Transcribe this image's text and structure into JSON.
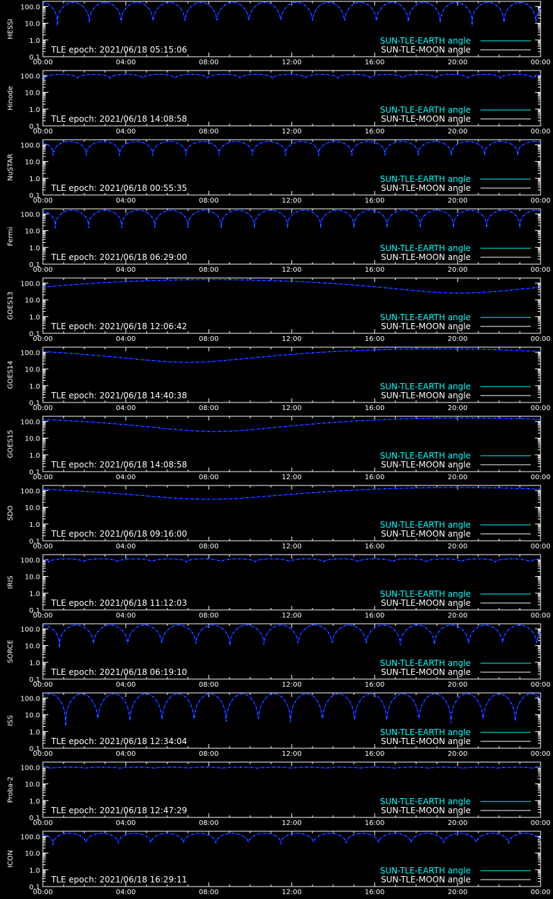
{
  "colors": {
    "background": "#000000",
    "axes": "#ffffff",
    "earth_angle": "#00ffff",
    "moon_angle": "#ffffff",
    "curve_dark": "#1010ff"
  },
  "legend": {
    "earth_label": "SUN-TLE-EARTH angle",
    "moon_label": "SUN-TLE-MOON angle"
  },
  "chart_data": [
    {
      "type": "line",
      "panel_label": "HESSI",
      "tle_epoch": "TLE epoch: 2021/06/18 05:15:06",
      "xlabel": "",
      "ylabel": "",
      "x_ticks": [
        "00:00",
        "04:00",
        "08:00",
        "12:00",
        "16:00",
        "20:00",
        "00:00"
      ],
      "xlim": [
        0,
        24
      ],
      "y_ticks": [
        "100.0",
        "10.0",
        "1.0",
        "0.1"
      ],
      "ylim": [
        0.1,
        200
      ],
      "y_scale": "log",
      "earth_angle": {
        "shape": "orbital",
        "periods": 15.6,
        "phase_hours": 0.7,
        "min": 7,
        "max": 175
      },
      "legend_placement": "bottom-right"
    },
    {
      "type": "line",
      "panel_label": "Hinode",
      "tle_epoch": "TLE epoch: 2021/06/18 14:08:58",
      "xlabel": "",
      "ylabel": "",
      "x_ticks": [
        "00:00",
        "04:00",
        "08:00",
        "12:00",
        "16:00",
        "20:00",
        "00:00"
      ],
      "xlim": [
        0,
        24
      ],
      "y_ticks": [
        "100.0",
        "10.0",
        "1.0",
        "0.1"
      ],
      "ylim": [
        0.1,
        200
      ],
      "y_scale": "log",
      "earth_angle": {
        "shape": "orbital",
        "periods": 15.3,
        "phase_hours": 0.1,
        "min": 62,
        "max": 120
      },
      "legend_placement": "bottom-right"
    },
    {
      "type": "line",
      "panel_label": "NuSTAR",
      "tle_epoch": "TLE epoch: 2021/06/18 00:55:35",
      "xlabel": "",
      "ylabel": "",
      "x_ticks": [
        "00:00",
        "04:00",
        "08:00",
        "12:00",
        "16:00",
        "20:00",
        "00:00"
      ],
      "xlim": [
        0,
        24
      ],
      "y_ticks": [
        "100.0",
        "10.0",
        "1.0",
        "0.1"
      ],
      "ylim": [
        0.1,
        200
      ],
      "y_scale": "log",
      "earth_angle": {
        "shape": "orbital",
        "periods": 15.0,
        "phase_hours": 0.5,
        "min": 22,
        "max": 155
      },
      "legend_placement": "bottom-right"
    },
    {
      "type": "line",
      "panel_label": "Fermi",
      "tle_epoch": "TLE epoch: 2021/06/18 06:29:00",
      "xlabel": "",
      "ylabel": "",
      "x_ticks": [
        "00:00",
        "04:00",
        "08:00",
        "12:00",
        "16:00",
        "20:00",
        "00:00"
      ],
      "xlim": [
        0,
        24
      ],
      "y_ticks": [
        "100.0",
        "10.0",
        "1.0",
        "0.1"
      ],
      "ylim": [
        0.1,
        200
      ],
      "y_scale": "log",
      "earth_angle": {
        "shape": "orbital",
        "periods": 15.0,
        "phase_hours": 0.6,
        "min": 14,
        "max": 165
      },
      "legend_placement": "bottom-right"
    },
    {
      "type": "line",
      "panel_label": "GOES13",
      "tle_epoch": "TLE epoch: 2021/06/18 12:06:42",
      "xlabel": "",
      "ylabel": "",
      "x_ticks": [
        "00:00",
        "04:00",
        "08:00",
        "12:00",
        "16:00",
        "20:00",
        "00:00"
      ],
      "xlim": [
        0,
        24
      ],
      "y_ticks": [
        "100.0",
        "10.0",
        "1.0",
        "0.1"
      ],
      "ylim": [
        0.1,
        200
      ],
      "y_scale": "log",
      "earth_angle": {
        "shape": "geo",
        "min_hour": 20.1,
        "min": 25,
        "max": 158
      },
      "legend_placement": "bottom-right"
    },
    {
      "type": "line",
      "panel_label": "GOES14",
      "tle_epoch": "TLE epoch: 2021/06/18 14:40:38",
      "xlabel": "",
      "ylabel": "",
      "x_ticks": [
        "00:00",
        "04:00",
        "08:00",
        "12:00",
        "16:00",
        "20:00",
        "00:00"
      ],
      "xlim": [
        0,
        24
      ],
      "y_ticks": [
        "100.0",
        "10.0",
        "1.0",
        "0.1"
      ],
      "ylim": [
        0.1,
        200
      ],
      "y_scale": "log",
      "earth_angle": {
        "shape": "geo",
        "min_hour": 7.0,
        "min": 25,
        "max": 158
      },
      "legend_placement": "bottom-right"
    },
    {
      "type": "line",
      "panel_label": "GOES15",
      "tle_epoch": "TLE epoch: 2021/06/18 14:08:58",
      "xlabel": "",
      "ylabel": "",
      "x_ticks": [
        "00:00",
        "04:00",
        "08:00",
        "12:00",
        "16:00",
        "20:00",
        "00:00"
      ],
      "xlim": [
        0,
        24
      ],
      "y_ticks": [
        "100.0",
        "10.0",
        "1.0",
        "0.1"
      ],
      "ylim": [
        0.1,
        200
      ],
      "y_scale": "log",
      "earth_angle": {
        "shape": "geo",
        "min_hour": 8.3,
        "min": 25,
        "max": 158
      },
      "legend_placement": "bottom-right"
    },
    {
      "type": "line",
      "panel_label": "SDO",
      "tle_epoch": "TLE epoch: 2021/06/18 09:16:00",
      "xlabel": "",
      "ylabel": "",
      "x_ticks": [
        "00:00",
        "04:00",
        "08:00",
        "12:00",
        "16:00",
        "20:00",
        "00:00"
      ],
      "xlim": [
        0,
        24
      ],
      "y_ticks": [
        "100.0",
        "10.0",
        "1.0",
        "0.1"
      ],
      "ylim": [
        0.1,
        200
      ],
      "y_scale": "log",
      "earth_angle": {
        "shape": "geo",
        "min_hour": 8.0,
        "min": 30,
        "max": 150
      },
      "legend_placement": "bottom-right"
    },
    {
      "type": "line",
      "panel_label": "IRIS",
      "tle_epoch": "TLE epoch: 2021/06/18 11:12:03",
      "xlabel": "",
      "ylabel": "",
      "x_ticks": [
        "00:00",
        "04:00",
        "08:00",
        "12:00",
        "16:00",
        "20:00",
        "00:00"
      ],
      "xlim": [
        0,
        24
      ],
      "y_ticks": [
        "100.0",
        "10.0",
        "1.0",
        "0.1"
      ],
      "ylim": [
        0.1,
        200
      ],
      "y_scale": "log",
      "earth_angle": {
        "shape": "orbital",
        "periods": 14.5,
        "phase_hours": 0.3,
        "min": 68,
        "max": 112
      },
      "legend_placement": "bottom-right"
    },
    {
      "type": "line",
      "panel_label": "SORCE",
      "tle_epoch": "TLE epoch: 2021/06/18 06:19:10",
      "xlabel": "",
      "ylabel": "",
      "x_ticks": [
        "00:00",
        "04:00",
        "08:00",
        "12:00",
        "16:00",
        "20:00",
        "00:00"
      ],
      "xlim": [
        0,
        24
      ],
      "y_ticks": [
        "100.0",
        "10.0",
        "1.0",
        "0.1"
      ],
      "ylim": [
        0.1,
        200
      ],
      "y_scale": "log",
      "earth_angle": {
        "shape": "orbital",
        "periods": 14.6,
        "phase_hours": 0.8,
        "min": 7,
        "max": 165
      },
      "legend_placement": "bottom-right"
    },
    {
      "type": "line",
      "panel_label": "ISS",
      "tle_epoch": "TLE epoch: 2021/06/18 12:34:04",
      "xlabel": "",
      "ylabel": "",
      "x_ticks": [
        "00:00",
        "04:00",
        "08:00",
        "12:00",
        "16:00",
        "20:00",
        "00:00"
      ],
      "xlim": [
        0,
        24
      ],
      "y_ticks": [
        "100.0",
        "10.0",
        "1.0",
        "0.1"
      ],
      "ylim": [
        0.1,
        200
      ],
      "y_scale": "log",
      "earth_angle": {
        "shape": "orbital",
        "periods": 15.5,
        "phase_hours": 1.1,
        "min": 2,
        "max": 175
      },
      "legend_placement": "bottom-right"
    },
    {
      "type": "line",
      "panel_label": "Proba-2",
      "tle_epoch": "TLE epoch: 2021/06/18 12:47:29",
      "xlabel": "",
      "ylabel": "",
      "x_ticks": [
        "00:00",
        "04:00",
        "08:00",
        "12:00",
        "16:00",
        "20:00",
        "00:00"
      ],
      "xlim": [
        0,
        24
      ],
      "y_ticks": [
        "100.0",
        "10.0",
        "1.0",
        "0.1"
      ],
      "ylim": [
        0.1,
        200
      ],
      "y_scale": "log",
      "earth_angle": {
        "shape": "orbital",
        "periods": 14.5,
        "phase_hours": 0.4,
        "min": 82,
        "max": 100
      },
      "legend_placement": "bottom-right"
    },
    {
      "type": "line",
      "panel_label": "ICON",
      "tle_epoch": "TLE epoch: 2021/06/18 16:29:11",
      "xlabel": "",
      "ylabel": "",
      "x_ticks": [
        "00:00",
        "04:00",
        "08:00",
        "12:00",
        "16:00",
        "20:00",
        "00:00"
      ],
      "xlim": [
        0,
        24
      ],
      "y_ticks": [
        "100.0",
        "10.0",
        "1.0",
        "0.1"
      ],
      "ylim": [
        0.1,
        200
      ],
      "y_scale": "log",
      "earth_angle": {
        "shape": "orbital",
        "periods": 15.3,
        "phase_hours": 0.5,
        "min": 30,
        "max": 150
      },
      "legend_placement": "bottom-right"
    }
  ]
}
